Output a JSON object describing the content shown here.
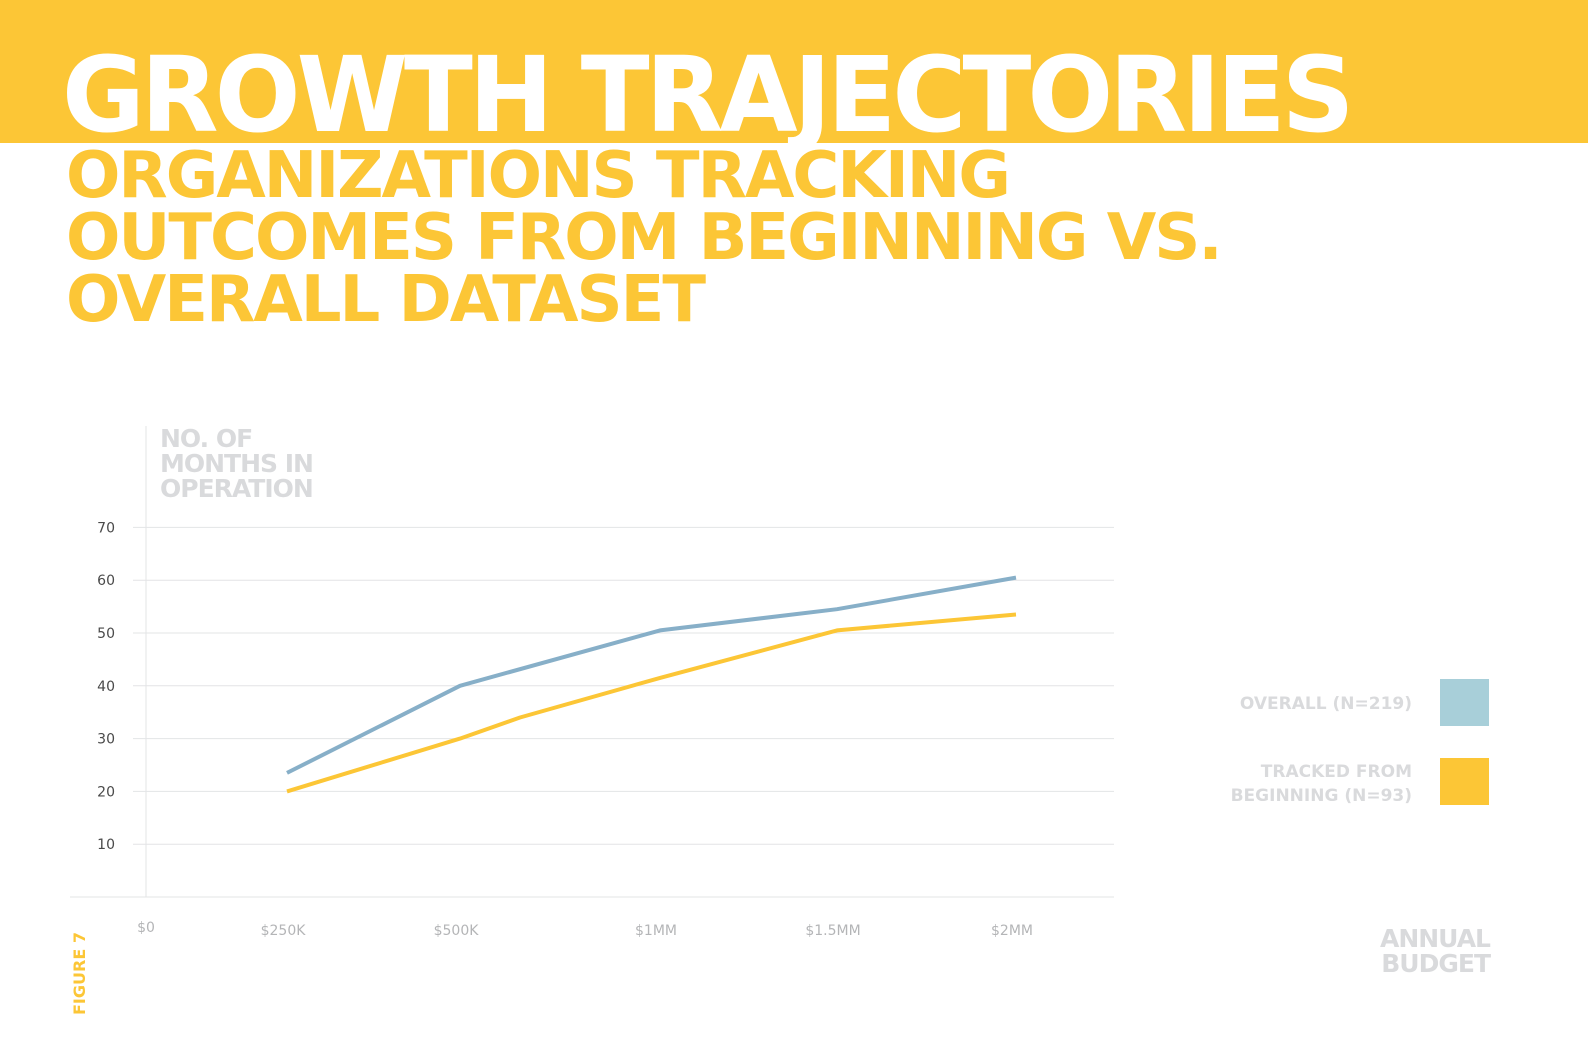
{
  "title": "GROWTH TRAJECTORIES",
  "subtitle_lines": [
    "ORGANIZATIONS TRACKING",
    "OUTCOMES FROM BEGINNING VS.",
    "OVERALL DATASET"
  ],
  "figure_label": "FIGURE 7",
  "colors": {
    "accent": "#fcc636",
    "overall": "#87afc8",
    "overall_swatch": "#a8cfd9",
    "tracked": "#fcc636",
    "muted": "#d9dadc"
  },
  "chart_data": {
    "type": "line",
    "ylabel_lines": [
      "NO. OF",
      "MONTHS IN",
      "OPERATION"
    ],
    "xlabel_lines": [
      "ANNUAL",
      "BUDGET"
    ],
    "y_ticks": [
      10,
      20,
      30,
      40,
      50,
      60,
      70
    ],
    "ylim": [
      0,
      70
    ],
    "x_ticks": [
      {
        "label": "$0",
        "value": 0
      },
      {
        "label": "$250K",
        "value": 0.25
      },
      {
        "label": "$500K",
        "value": 0.5
      },
      {
        "label": "$1MM",
        "value": 1.0
      },
      {
        "label": "$1.5MM",
        "value": 1.5
      },
      {
        "label": "$2MM",
        "value": 2.0
      }
    ],
    "grid": true,
    "legend_position": "right",
    "series": [
      {
        "name": "OVERALL (N=219)",
        "color": "#87afc8",
        "points": [
          {
            "x": 0.25,
            "y": 23.5
          },
          {
            "x": 0.5,
            "y": 40
          },
          {
            "x": 1.0,
            "y": 50.5
          },
          {
            "x": 1.5,
            "y": 54.5
          },
          {
            "x": 2.0,
            "y": 60.5
          }
        ]
      },
      {
        "name_lines": [
          "TRACKED FROM",
          "BEGINNING (N=93)"
        ],
        "color": "#fcc636",
        "points": [
          {
            "x": 0.25,
            "y": 20
          },
          {
            "x": 0.5,
            "y": 30
          },
          {
            "x": 0.65,
            "y": 34
          },
          {
            "x": 1.0,
            "y": 41.5
          },
          {
            "x": 1.5,
            "y": 50.5
          },
          {
            "x": 2.0,
            "y": 53.5
          }
        ]
      }
    ]
  }
}
